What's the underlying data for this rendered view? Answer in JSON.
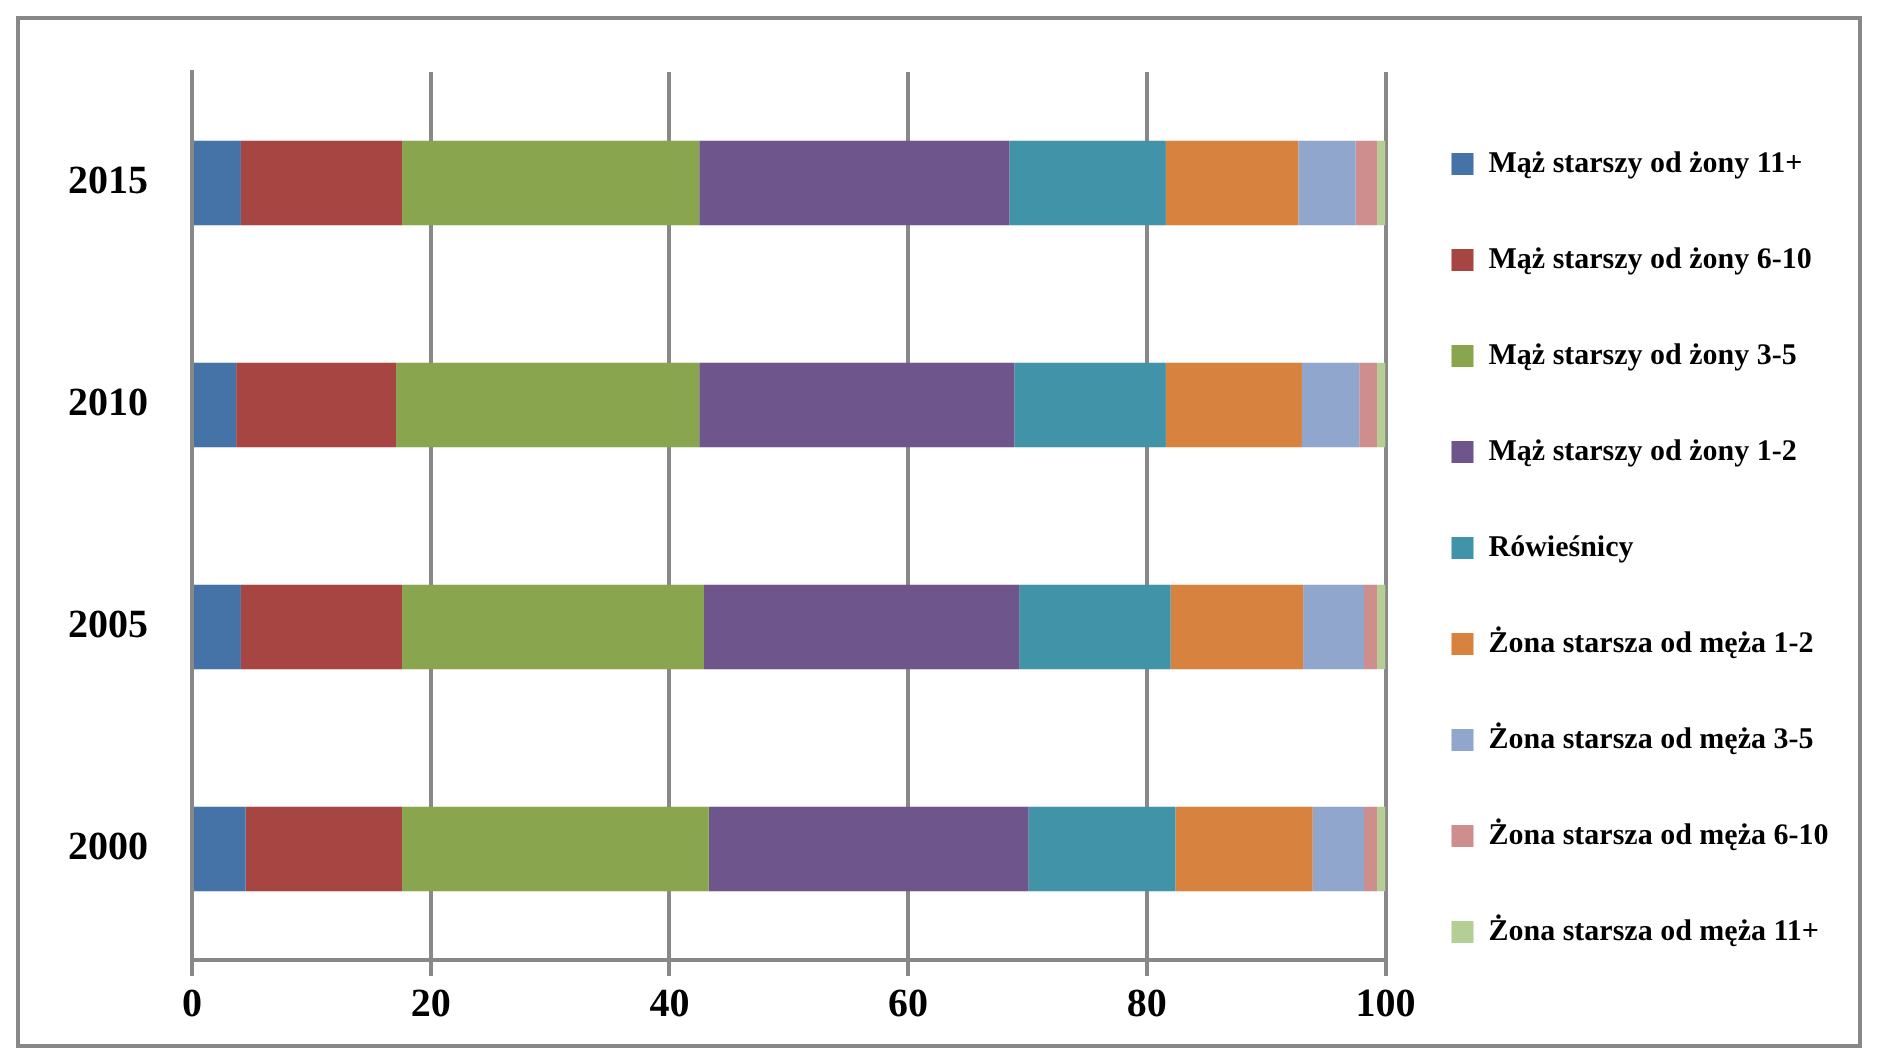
{
  "chart_data": {
    "type": "bar",
    "orientation": "horizontal",
    "stacked": true,
    "categories": [
      "2015",
      "2010",
      "2005",
      "2000"
    ],
    "series": [
      {
        "name": "Mąż starszy od żony 11+",
        "color": "#4572a7",
        "values": [
          4.1,
          3.7,
          4.1,
          4.5
        ]
      },
      {
        "name": "Mąż starszy od żony 6-10",
        "color": "#a74543",
        "values": [
          13.5,
          13.4,
          13.5,
          13.1
        ]
      },
      {
        "name": "Mąż starszy od żony 3-5",
        "color": "#89a54e",
        "values": [
          24.9,
          25.4,
          25.3,
          25.7
        ]
      },
      {
        "name": "Mąż starszy od żony 1-2",
        "color": "#6e558b",
        "values": [
          26.0,
          26.4,
          26.4,
          26.8
        ]
      },
      {
        "name": "Rówieśnicy",
        "color": "#4193a7",
        "values": [
          13.1,
          12.7,
          12.7,
          12.3
        ]
      },
      {
        "name": "Żona starsza od męża 1-2",
        "color": "#d7823e",
        "values": [
          11.1,
          11.4,
          11.1,
          11.5
        ]
      },
      {
        "name": "Żona starsza od męża 3-5",
        "color": "#91a6cd",
        "values": [
          4.8,
          4.8,
          5.1,
          4.3
        ]
      },
      {
        "name": "Żona starsza od męża 6-10",
        "color": "#ce8e8d",
        "values": [
          1.8,
          1.5,
          1.1,
          1.1
        ]
      },
      {
        "name": "Żona starsza od męża 11+",
        "color": "#b5ce94",
        "values": [
          0.7,
          0.7,
          0.7,
          0.7
        ]
      }
    ],
    "xlim": [
      0,
      100
    ],
    "xticks": [
      0,
      20,
      40,
      60,
      80,
      100
    ],
    "grid": "x",
    "legend": "right"
  }
}
